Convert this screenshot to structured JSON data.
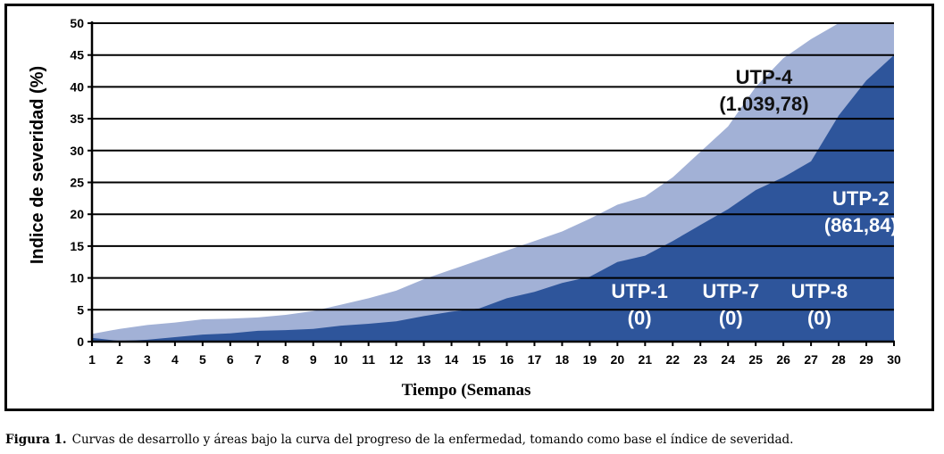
{
  "chart_data": {
    "type": "area",
    "title": "",
    "xlabel": "Tiempo (Semanas",
    "ylabel": "Indice de severidad (%)",
    "xlim": [
      1,
      30
    ],
    "ylim": [
      0,
      50
    ],
    "grid": "horizontal",
    "x": [
      1,
      2,
      3,
      4,
      5,
      6,
      7,
      8,
      9,
      10,
      11,
      12,
      13,
      14,
      15,
      16,
      17,
      18,
      19,
      20,
      21,
      22,
      23,
      24,
      25,
      26,
      27,
      28,
      29,
      30
    ],
    "y_ticks": [
      0,
      5,
      10,
      15,
      20,
      25,
      30,
      35,
      40,
      45,
      50
    ],
    "series": [
      {
        "name": "UTP-4",
        "annotation": "(1.039,78)",
        "color": "#a2b1d6",
        "values": [
          1.2,
          2.0,
          2.6,
          3.0,
          3.5,
          3.6,
          3.8,
          4.2,
          4.8,
          5.8,
          6.8,
          8.0,
          9.8,
          11.3,
          12.8,
          14.3,
          15.8,
          17.3,
          19.3,
          21.5,
          22.8,
          25.8,
          29.8,
          33.8,
          40.0,
          44.5,
          47.5,
          50.0,
          50.0,
          50.0
        ]
      },
      {
        "name": "UTP-2",
        "annotation": "(861,84)",
        "color": "#2e559b",
        "values": [
          0.6,
          0.1,
          0.3,
          0.7,
          1.1,
          1.3,
          1.7,
          1.8,
          2.0,
          2.5,
          2.8,
          3.2,
          4.0,
          4.7,
          5.2,
          6.8,
          7.8,
          9.2,
          10.2,
          12.5,
          13.5,
          15.8,
          18.3,
          20.8,
          23.8,
          25.8,
          28.3,
          35.5,
          41.0,
          45.0
        ]
      },
      {
        "name": "UTP-1",
        "annotation": "(0)",
        "values": [
          0,
          0,
          0,
          0,
          0,
          0,
          0,
          0,
          0,
          0,
          0,
          0,
          0,
          0,
          0,
          0,
          0,
          0,
          0,
          0,
          0,
          0,
          0,
          0,
          0,
          0,
          0,
          0,
          0,
          0
        ]
      },
      {
        "name": "UTP-7",
        "annotation": "(0)",
        "values": [
          0,
          0,
          0,
          0,
          0,
          0,
          0,
          0,
          0,
          0,
          0,
          0,
          0,
          0,
          0,
          0,
          0,
          0,
          0,
          0,
          0,
          0,
          0,
          0,
          0,
          0,
          0,
          0,
          0,
          0
        ]
      },
      {
        "name": "UTP-8",
        "annotation": "(0)",
        "values": [
          0,
          0,
          0,
          0,
          0,
          0,
          0,
          0,
          0,
          0,
          0,
          0,
          0,
          0,
          0,
          0,
          0,
          0,
          0,
          0,
          0,
          0,
          0,
          0,
          0,
          0,
          0,
          0,
          0,
          0
        ]
      }
    ]
  },
  "caption": {
    "label": "Figura 1.",
    "text": "Curvas de desarrollo y áreas bajo la curva del progreso de la enfermedad, tomando como base el índice de severidad."
  }
}
